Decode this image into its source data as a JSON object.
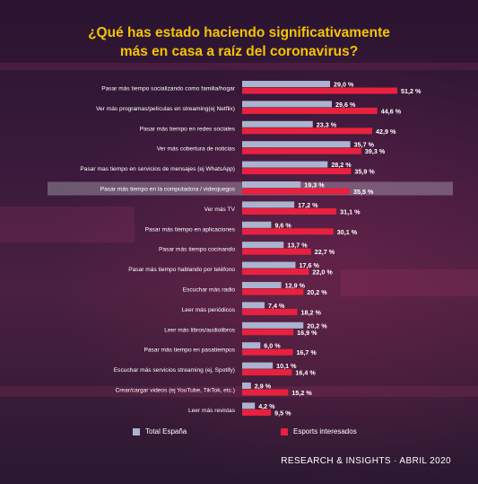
{
  "title_lines": [
    "¿Qué has estado haciendo significativamente",
    "más en casa a raíz del coronavirus?"
  ],
  "footer": "RESEARCH & INSIGHTS · ABRIL 2020",
  "colors": {
    "title": "#f4c400",
    "series_1": "#aab4cf",
    "series_2": "#e8213f",
    "highlight_row": "#c9cbd6"
  },
  "chart_data": {
    "type": "bar",
    "orientation": "horizontal",
    "title": "¿Qué has estado haciendo significativamente más en casa a raíz del coronavirus?",
    "categories": [
      "Pasar más tiempo socializando como familia/hogar",
      "Ver más programas/películas en streaming(ej Netflix)",
      "Pasar más tiempo en redes sociales",
      "Ver más cobertura de noticias",
      "Pasar mas tiempo en servicios de mensajes (ej WhatsApp)",
      "Pasar más tiempo en la computadora / videojuegos",
      "Ver más TV",
      "Pasar más tiempo en aplicaciones",
      "Pasar más tiempo cocinando",
      "Pasar más tiempo hablando por teléfono",
      "Escuchar más radio",
      "Leer más periódicos",
      "Leer más libros/audiolibros",
      "Pasar más tiempo en pasatiempos",
      "Escuchar más servicios streaming (ej, Spotify)",
      "Crear/cargar videos (ej YouTube, TikTok, etc.)",
      "Leer más revistas"
    ],
    "series": [
      {
        "name": "Total España",
        "values": [
          29.0,
          29.6,
          23.3,
          35.7,
          28.2,
          19.3,
          17.2,
          9.6,
          13.7,
          17.6,
          12.9,
          7.4,
          20.2,
          6.0,
          10.1,
          2.9,
          4.2
        ],
        "labels": [
          "29,0 %",
          "29,6 %",
          "23,3 %",
          "35,7 %",
          "28,2 %",
          "19,3 %",
          "17,2 %",
          "9,6 %",
          "13,7 %",
          "17,6 %",
          "12,9 %",
          "7,4 %",
          "20,2 %",
          "6,0 %",
          "10,1 %",
          "2,9 %",
          "4,2 %"
        ]
      },
      {
        "name": "Esports interesados",
        "values": [
          51.2,
          44.6,
          42.9,
          39.3,
          35.9,
          35.5,
          31.1,
          30.1,
          22.7,
          22.0,
          20.2,
          18.2,
          16.9,
          16.7,
          16.4,
          15.2,
          9.5
        ],
        "labels": [
          "51,2 %",
          "44,6 %",
          "42,9 %",
          "39,3 %",
          "35,9 %",
          "35,5 %",
          "31,1 %",
          "30,1 %",
          "22,7 %",
          "22,0 %",
          "20,2 %",
          "18,2 %",
          "16,9 %",
          "16,7 %",
          "16,4 %",
          "15,2 %",
          "9,5 %"
        ]
      }
    ],
    "highlighted_category": "Pasar más tiempo en la computadora / videojuegos",
    "legend_position": "bottom",
    "grid": false
  }
}
